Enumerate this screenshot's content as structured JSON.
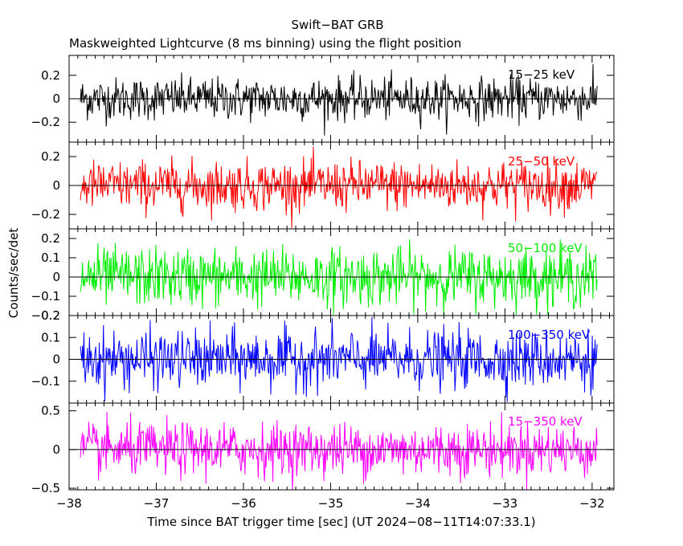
{
  "header": {
    "title": "Swift−BAT GRB",
    "subtitle": "Maskweighted Lightcurve (8 ms binning) using the flight position"
  },
  "axes": {
    "xlabel": "Time since BAT trigger time [sec] (UT 2024−08−11T14:07:33.1)",
    "ylabel": "Counts/sec/det"
  },
  "chart_data": {
    "type": "line",
    "shared_x": {
      "range": [
        -38.0,
        -31.75
      ],
      "data_range": [
        -37.87,
        -31.93
      ],
      "ticks": [
        -38,
        -37,
        -36,
        -35,
        -34,
        -33,
        -32
      ],
      "tick_labels": [
        "−38",
        "−37",
        "−36",
        "−35",
        "−34",
        "−33",
        "−32"
      ]
    },
    "panels": [
      {
        "name": "15−25 keV",
        "color": "#000000",
        "ylim": [
          -0.37,
          0.37
        ],
        "yticks": [
          -0.2,
          0,
          0.2
        ],
        "ytick_labels": [
          "−0.2",
          "0",
          "0.2"
        ],
        "noise_amplitude": 0.09
      },
      {
        "name": "25−50 keV",
        "color": "#ff0000",
        "ylim": [
          -0.3,
          0.3
        ],
        "yticks": [
          -0.2,
          0,
          0.2
        ],
        "ytick_labels": [
          "−0.2",
          "0",
          "0.2"
        ],
        "noise_amplitude": 0.085
      },
      {
        "name": "50−100 keV",
        "color": "#00ee00",
        "ylim": [
          -0.2,
          0.25
        ],
        "yticks": [
          -0.2,
          -0.1,
          0,
          0.1,
          0.2
        ],
        "ytick_labels": [
          "−0.2",
          "−0.1",
          "0",
          "0.1",
          "0.2"
        ],
        "noise_amplitude": 0.075
      },
      {
        "name": "100−350 keV",
        "color": "#0000ff",
        "ylim": [
          -0.2,
          0.2
        ],
        "yticks": [
          -0.1,
          0,
          0.1,
          0.2
        ],
        "ytick_labels": [
          "−0.1",
          "0",
          "0.1",
          "0.2"
        ],
        "noise_amplitude": 0.065
      },
      {
        "name": "15−350 keV",
        "color": "#ff00ff",
        "ylim": [
          -0.52,
          0.6
        ],
        "yticks": [
          -0.5,
          0,
          0.5
        ],
        "ytick_labels": [
          "−0.5",
          "0",
          "0.5"
        ],
        "noise_amplitude": 0.17
      }
    ],
    "bin_size_sec": 0.008,
    "zero_line": true
  }
}
